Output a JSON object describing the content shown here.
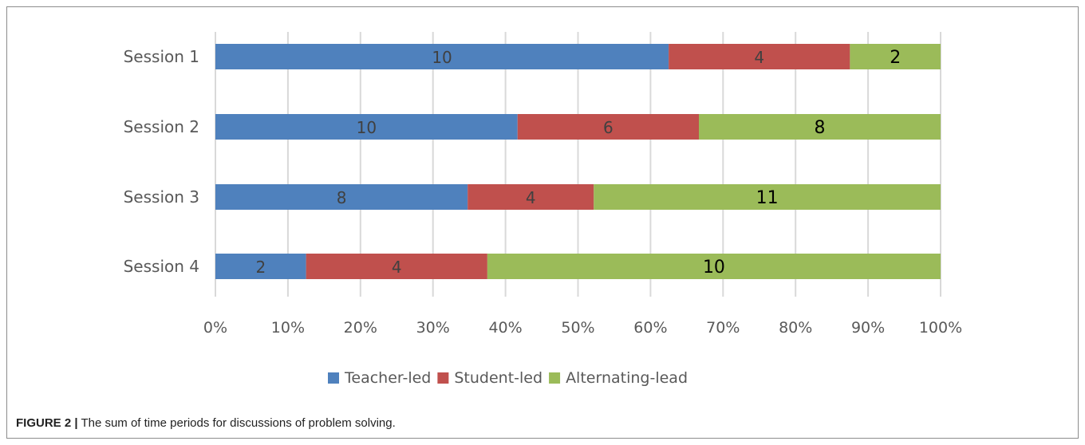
{
  "chart_data": {
    "type": "bar",
    "orientation": "horizontal",
    "stacking": "percent",
    "categories": [
      "Session 1",
      "Session 2",
      "Session 3",
      "Session 4"
    ],
    "series": [
      {
        "name": "Teacher-led",
        "color": "#4f81bd",
        "values": [
          10,
          10,
          8,
          2
        ]
      },
      {
        "name": "Student-led",
        "color": "#c0504d",
        "values": [
          4,
          6,
          4,
          4
        ]
      },
      {
        "name": "Alternating-lead",
        "color": "#9bbb59",
        "values": [
          2,
          8,
          11,
          10
        ]
      }
    ],
    "x_ticks": [
      "0%",
      "10%",
      "20%",
      "30%",
      "40%",
      "50%",
      "60%",
      "70%",
      "80%",
      "90%",
      "100%"
    ],
    "xlim": [
      0,
      100
    ],
    "grid": true,
    "legend_position": "bottom"
  },
  "caption": {
    "label": "FIGURE 2 |",
    "text": " The sum of time periods for discussions of problem solving."
  }
}
